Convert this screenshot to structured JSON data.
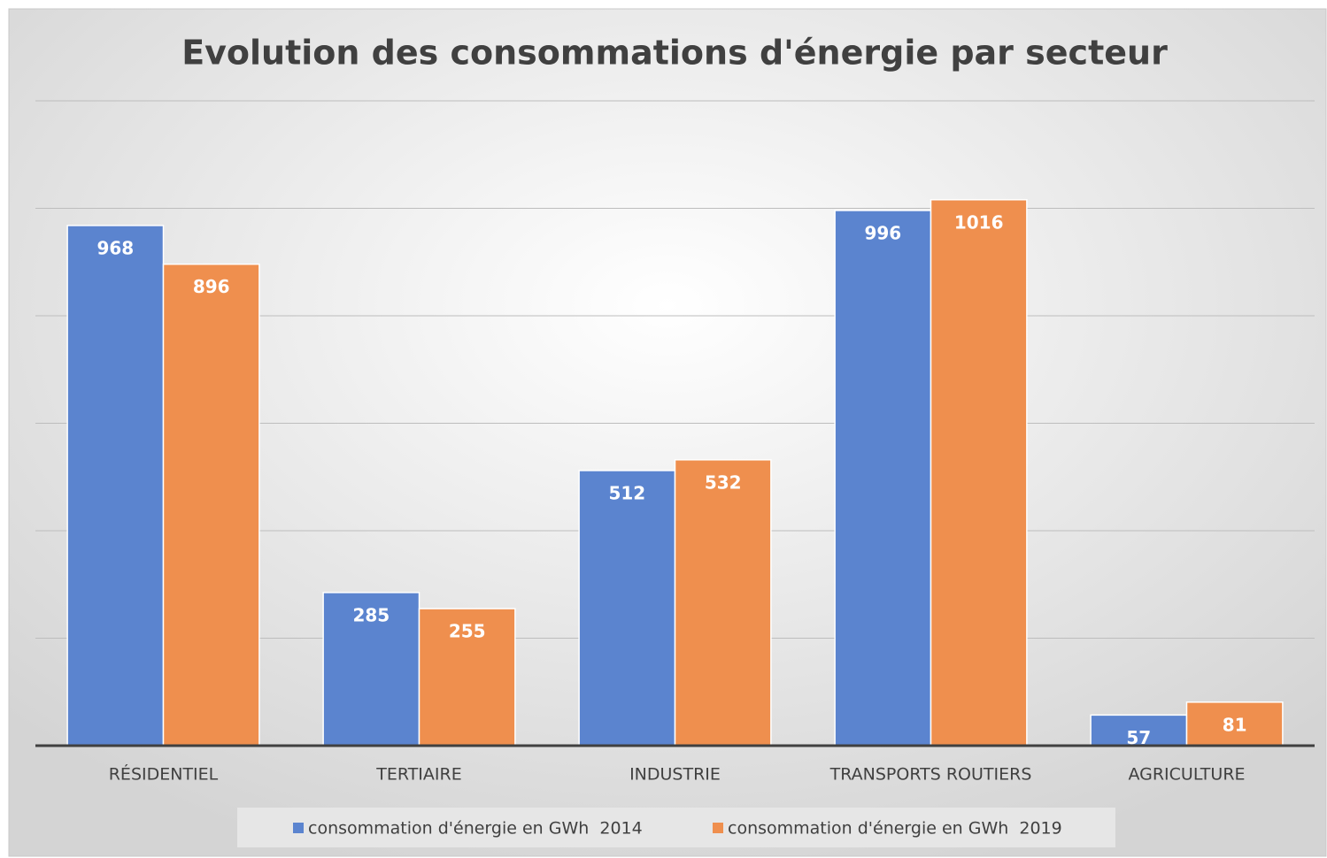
{
  "chart_data": {
    "type": "bar",
    "title": "Evolution des consommations d'énergie par secteur",
    "categories": [
      "RÉSIDENTIEL",
      "TERTIAIRE",
      "INDUSTRIE",
      "TRANSPORTS ROUTIERS",
      "AGRICULTURE"
    ],
    "series": [
      {
        "name": "consommation d'énergie en GWh  2014",
        "color": "#5b84cf",
        "values": [
          968,
          285,
          512,
          996,
          57
        ]
      },
      {
        "name": "consommation d'énergie en GWh  2019",
        "color": "#ef8f4e",
        "values": [
          896,
          255,
          532,
          1016,
          81
        ]
      }
    ],
    "ylim": [
      0,
      1200
    ],
    "yticks": [
      0,
      200,
      400,
      600,
      800,
      1000,
      1200
    ],
    "grid": true,
    "legend": "bottom"
  }
}
